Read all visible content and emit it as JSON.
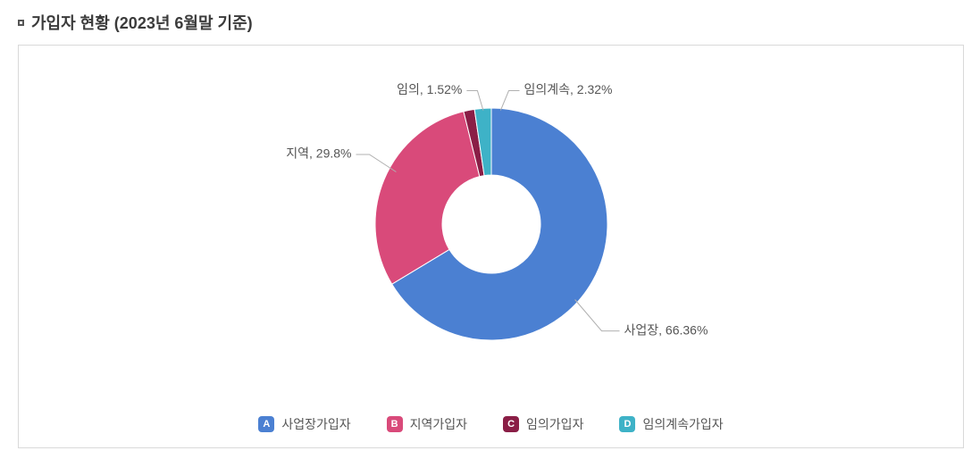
{
  "title": "가입자 현황 (2023년 6월말 기준)",
  "chart": {
    "type": "donut",
    "outer_radius": 130,
    "inner_radius": 55,
    "center_color": "#ffffff",
    "background_color": "#ffffff",
    "border_color": "#d9d9d9",
    "start_angle_deg": -90,
    "slices": [
      {
        "label_short": "사업장",
        "value_pct": 66.36,
        "color": "#4b80d2",
        "legend_letter": "A",
        "legend_label": "사업장가입자",
        "label_text": "사업장, 66.36%"
      },
      {
        "label_short": "지역",
        "value_pct": 29.8,
        "color": "#d94a7a",
        "legend_letter": "B",
        "legend_label": "지역가입자",
        "label_text": "지역, 29.8%"
      },
      {
        "label_short": "임의",
        "value_pct": 1.52,
        "color": "#8a1e46",
        "legend_letter": "C",
        "legend_label": "임의가입자",
        "label_text": "임의, 1.52%"
      },
      {
        "label_short": "임의계속",
        "value_pct": 2.32,
        "color": "#3eb2c7",
        "legend_letter": "D",
        "legend_label": "임의계속가입자",
        "label_text": "임의계속, 2.32%"
      }
    ],
    "label_fontsize": 14,
    "label_color": "#555555",
    "leader_color": "#b0b0b0"
  },
  "legend_badge_text_color": "#ffffff"
}
